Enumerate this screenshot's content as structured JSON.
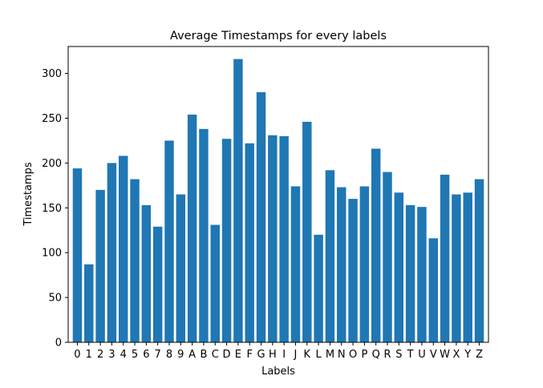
{
  "chart_data": {
    "type": "bar",
    "title": "Average Timestamps for every labels",
    "xlabel": "Labels",
    "ylabel": "Timestamps",
    "ylim": [
      0,
      330
    ],
    "yticks": [
      0,
      50,
      100,
      150,
      200,
      250,
      300
    ],
    "grid": false,
    "bar_color": "#1f77b4",
    "categories": [
      "0",
      "1",
      "2",
      "3",
      "4",
      "5",
      "6",
      "7",
      "8",
      "9",
      "A",
      "B",
      "C",
      "D",
      "E",
      "F",
      "G",
      "H",
      "I",
      "J",
      "K",
      "L",
      "M",
      "N",
      "O",
      "P",
      "Q",
      "R",
      "S",
      "T",
      "U",
      "V",
      "W",
      "X",
      "Y",
      "Z"
    ],
    "values": [
      194,
      87,
      170,
      200,
      208,
      182,
      153,
      129,
      225,
      165,
      254,
      238,
      131,
      227,
      316,
      222,
      279,
      231,
      230,
      174,
      246,
      120,
      192,
      173,
      160,
      174,
      216,
      190,
      167,
      153,
      151,
      116,
      187,
      165,
      167,
      182
    ]
  }
}
